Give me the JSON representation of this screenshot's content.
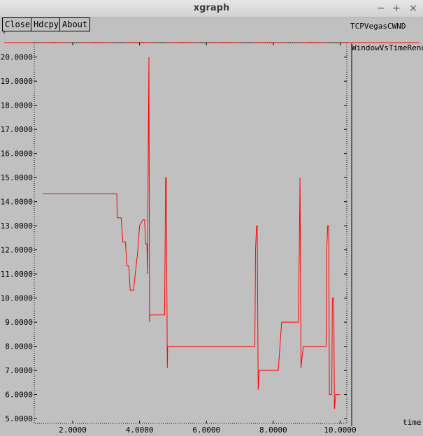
{
  "window": {
    "title": "xgraph",
    "controls": {
      "minimize": "−",
      "maximize": "+",
      "close": "×"
    }
  },
  "toolbar": {
    "close_label": "Close",
    "hdcpy_label": "Hdcpy",
    "about_label": "About"
  },
  "chart_data": {
    "type": "line",
    "title": "TCPVegasCWND",
    "xlabel": "time",
    "ylabel": "",
    "xlim": [
      0.85,
      10.2
    ],
    "ylim": [
      4.8,
      20.6
    ],
    "xticks": [
      "2.0000",
      "4.0000",
      "6.0000",
      "8.0000",
      "10.0000"
    ],
    "xtick_values": [
      2,
      4,
      6,
      8,
      10
    ],
    "yticks": [
      "5.0000",
      "6.0000",
      "7.0000",
      "8.0000",
      "9.0000",
      "10.0000",
      "11.0000",
      "12.0000",
      "13.0000",
      "14.0000",
      "15.0000",
      "16.0000",
      "17.0000",
      "18.0000",
      "19.0000",
      "20.0000"
    ],
    "ytick_values": [
      5,
      6,
      7,
      8,
      9,
      10,
      11,
      12,
      13,
      14,
      15,
      16,
      17,
      18,
      19,
      20
    ],
    "grid": false,
    "legend_position": "right",
    "series": [
      {
        "name": "WindowVsTimeReno",
        "color": "#ff0000",
        "points": [
          [
            1.1,
            14.33
          ],
          [
            3.32,
            14.33
          ],
          [
            3.33,
            13.33
          ],
          [
            3.45,
            13.33
          ],
          [
            3.5,
            12.33
          ],
          [
            3.58,
            12.33
          ],
          [
            3.62,
            11.33
          ],
          [
            3.68,
            11.33
          ],
          [
            3.72,
            10.33
          ],
          [
            3.82,
            10.33
          ],
          [
            3.95,
            12.0
          ],
          [
            4.0,
            13.0
          ],
          [
            4.1,
            13.25
          ],
          [
            4.15,
            13.25
          ],
          [
            4.18,
            12.25
          ],
          [
            4.22,
            12.25
          ],
          [
            4.24,
            11.0
          ],
          [
            4.26,
            16.0
          ],
          [
            4.28,
            20.0
          ],
          [
            4.3,
            9.0
          ],
          [
            4.31,
            9.3
          ],
          [
            4.75,
            9.3
          ],
          [
            4.78,
            15.0
          ],
          [
            4.8,
            15.0
          ],
          [
            4.83,
            7.1
          ],
          [
            4.84,
            8.0
          ],
          [
            7.45,
            8.0
          ],
          [
            7.47,
            12.0
          ],
          [
            7.5,
            13.0
          ],
          [
            7.52,
            13.0
          ],
          [
            7.55,
            6.2
          ],
          [
            7.58,
            7.0
          ],
          [
            8.15,
            7.0
          ],
          [
            8.2,
            8.0
          ],
          [
            8.25,
            9.0
          ],
          [
            8.75,
            9.0
          ],
          [
            8.78,
            12.0
          ],
          [
            8.8,
            15.0
          ],
          [
            8.83,
            7.1
          ],
          [
            8.86,
            7.5
          ],
          [
            8.9,
            8.0
          ],
          [
            9.58,
            8.0
          ],
          [
            9.6,
            12.0
          ],
          [
            9.63,
            13.0
          ],
          [
            9.66,
            13.0
          ],
          [
            9.68,
            6.0
          ],
          [
            9.75,
            6.0
          ],
          [
            9.77,
            10.0
          ],
          [
            9.81,
            10.0
          ],
          [
            9.83,
            5.4
          ],
          [
            9.87,
            6.0
          ],
          [
            10.0,
            6.0
          ]
        ]
      }
    ]
  }
}
